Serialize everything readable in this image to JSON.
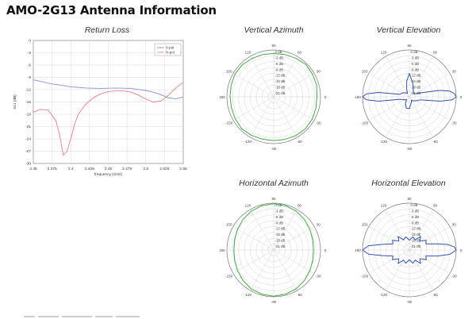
{
  "page": {
    "title": "AMO-2G13 Antenna Information"
  },
  "chart_data": [
    {
      "type": "line",
      "title": "Return Loss",
      "xlabel": "frequency (GHz)",
      "ylabel": "S11 (dB)",
      "xlim": [
        2.35,
        2.55
      ],
      "ylim": [
        -30,
        0
      ],
      "x_ticks": [
        "2.35",
        "2.375",
        "2.4",
        "2.425",
        "2.45",
        "2.475",
        "2.5",
        "2.525",
        "2.55"
      ],
      "y_ticks": [
        "0",
        "-3",
        "-6",
        "-9",
        "-12",
        "-15",
        "-18",
        "-21",
        "-24",
        "-27",
        "-30"
      ],
      "grid": true,
      "legend_position": "top-right",
      "series": [
        {
          "name": "V-pol",
          "color": "#8a8fd8",
          "x": [
            2.35,
            2.36,
            2.375,
            2.39,
            2.4,
            2.42,
            2.44,
            2.46,
            2.48,
            2.5,
            2.51,
            2.52,
            2.53,
            2.54,
            2.55
          ],
          "y": [
            -9.6,
            -10.0,
            -10.6,
            -11.0,
            -11.3,
            -11.6,
            -11.7,
            -11.6,
            -11.7,
            -12.2,
            -12.6,
            -13.2,
            -14.0,
            -14.2,
            -13.8
          ]
        },
        {
          "name": "H-pol",
          "color": "#f27c8a",
          "x": [
            2.35,
            2.36,
            2.37,
            2.38,
            2.385,
            2.39,
            2.395,
            2.4,
            2.405,
            2.41,
            2.42,
            2.43,
            2.44,
            2.45,
            2.46,
            2.47,
            2.48,
            2.49,
            2.5,
            2.51,
            2.52,
            2.53,
            2.54,
            2.55
          ],
          "y": [
            -17.5,
            -16.8,
            -17.0,
            -19.5,
            -23.0,
            -28.0,
            -27.0,
            -24.0,
            -20.5,
            -18.0,
            -15.5,
            -14.0,
            -13.0,
            -12.5,
            -12.3,
            -12.3,
            -12.6,
            -13.3,
            -14.3,
            -15.0,
            -14.8,
            -13.4,
            -11.6,
            -10.2
          ]
        }
      ]
    },
    {
      "type": "polar",
      "title": "Vertical Azimuth",
      "angle_labels": [
        "90",
        "60",
        "30",
        "0",
        "-30",
        "-60",
        "-90",
        "-120",
        "-150",
        "180",
        "150",
        "120"
      ],
      "radial_labels": [
        "0 dB",
        "-3 dB",
        "-6 dB",
        "-9 dB",
        "-12 dB",
        "-15 dB",
        "-18 dB",
        "-21 dB"
      ],
      "rlim": [
        -24,
        0
      ],
      "series": [
        {
          "color": "#3fae3f",
          "angle_deg": [
            0,
            15,
            30,
            45,
            60,
            75,
            90,
            105,
            120,
            135,
            150,
            165,
            180,
            195,
            210,
            225,
            240,
            255,
            270,
            285,
            300,
            315,
            330,
            345
          ],
          "gain_db": [
            -1.8,
            -1.2,
            -1.0,
            -0.6,
            -1.2,
            -1.6,
            -1.8,
            -1.6,
            -1.4,
            -1.0,
            -1.0,
            -1.4,
            -1.6,
            -1.6,
            -1.3,
            -0.8,
            -1.2,
            -1.5,
            -1.6,
            -1.4,
            -1.1,
            -0.9,
            -1.2,
            -1.6
          ]
        }
      ]
    },
    {
      "type": "polar",
      "title": "Vertical Elevation",
      "angle_labels": [
        "90",
        "60",
        "30",
        "0",
        "-30",
        "-60",
        "-90",
        "-120",
        "-150",
        "180",
        "150",
        "120"
      ],
      "radial_labels": [
        "0 dB",
        "-3 dB",
        "-6 dB",
        "-9 dB",
        "-12 dB",
        "-15 dB",
        "-18 dB",
        "-21 dB"
      ],
      "rlim": [
        -24,
        0
      ],
      "series": [
        {
          "color": "#3452b0",
          "angle_deg": [
            0,
            4,
            8,
            12,
            20,
            30,
            45,
            60,
            75,
            90,
            100,
            110,
            120,
            135,
            150,
            165,
            172,
            176,
            180,
            184,
            188,
            195,
            210,
            225,
            240,
            255,
            270,
            280,
            290,
            300,
            315,
            330,
            345,
            352,
            356
          ],
          "gain_db": [
            0,
            -0.8,
            -3,
            -8,
            -18,
            -21,
            -21,
            -20,
            -17,
            -12,
            -16,
            -20,
            -22,
            -21,
            -20,
            -19,
            -8,
            -2,
            0,
            -2,
            -8,
            -19,
            -21,
            -22,
            -20,
            -18,
            -18,
            -20,
            -21,
            -22,
            -21,
            -20,
            -18,
            -8,
            -2
          ]
        }
      ]
    },
    {
      "type": "polar",
      "title": "Horizontal Azimuth",
      "angle_labels": [
        "90",
        "60",
        "30",
        "0",
        "-30",
        "-60",
        "-90",
        "-120",
        "-150",
        "180",
        "150",
        "120"
      ],
      "radial_labels": [
        "0 dB",
        "-3 dB",
        "-6 dB",
        "-9 dB",
        "-12 dB",
        "-15 dB",
        "-18 dB",
        "-21 dB"
      ],
      "rlim": [
        -24,
        0
      ],
      "series": [
        {
          "color": "#3fae3f",
          "angle_deg": [
            0,
            15,
            30,
            45,
            60,
            75,
            90,
            105,
            120,
            135,
            150,
            165,
            180,
            195,
            210,
            225,
            240,
            255,
            270,
            285,
            300,
            315,
            330,
            345
          ],
          "gain_db": [
            -3.6,
            -3.3,
            -2.6,
            -1.8,
            -1.0,
            -0.5,
            -0.3,
            -0.5,
            -1.0,
            -1.8,
            -2.6,
            -3.3,
            -3.6,
            -3.3,
            -2.6,
            -1.8,
            -1.0,
            -0.5,
            -0.3,
            -0.5,
            -1.0,
            -1.8,
            -2.6,
            -3.3
          ]
        }
      ]
    },
    {
      "type": "polar",
      "title": "Horizontal Elevation",
      "angle_labels": [
        "90",
        "60",
        "30",
        "0",
        "-30",
        "-60",
        "-90",
        "-120",
        "-150",
        "180",
        "150",
        "120"
      ],
      "radial_labels": [
        "0 dB",
        "-3 dB",
        "-6 dB",
        "-9 dB",
        "-12 dB",
        "-15 dB",
        "-18 dB",
        "-21 dB"
      ],
      "rlim": [
        -24,
        0
      ],
      "series": [
        {
          "color": "#3452b0",
          "angle_deg": [
            0,
            4,
            8,
            12,
            20,
            30,
            40,
            50,
            60,
            75,
            90,
            105,
            120,
            130,
            140,
            150,
            160,
            168,
            174,
            180,
            186,
            192,
            200,
            210,
            220,
            230,
            240,
            255,
            270,
            285,
            300,
            310,
            320,
            330,
            340,
            348,
            354
          ],
          "gain_db": [
            0,
            -1,
            -4,
            -9,
            -15,
            -14,
            -17,
            -15,
            -18,
            -17,
            -19,
            -17,
            -18,
            -15,
            -17,
            -14,
            -15,
            -10,
            -3,
            0,
            -3,
            -10,
            -15,
            -14,
            -17,
            -15,
            -18,
            -17,
            -19,
            -17,
            -18,
            -15,
            -17,
            -14,
            -15,
            -9,
            -3
          ]
        }
      ]
    }
  ]
}
